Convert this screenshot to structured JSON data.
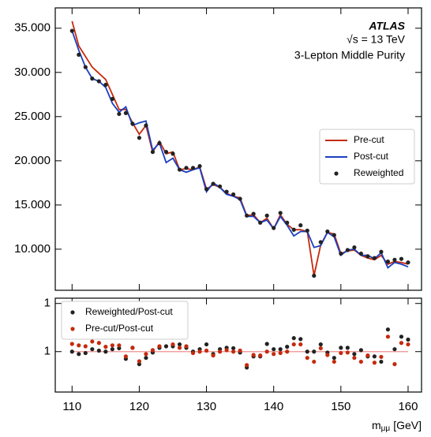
{
  "chart_data": [
    {
      "type": "line",
      "annotations": [
        "ATLAS",
        "√s = 13 TeV",
        "3-Lepton Middle Purity"
      ],
      "legend": "center right",
      "xlim": [
        107.5,
        162
      ],
      "ylim": [
        5350,
        37300
      ],
      "yticks": [
        {
          "value": 10000,
          "label": "10.000"
        },
        {
          "value": 15000,
          "label": "15.000"
        },
        {
          "value": 20000,
          "label": "20.000"
        },
        {
          "value": 25000,
          "label": "25.000"
        },
        {
          "value": 30000,
          "label": "30.000"
        },
        {
          "value": 35000,
          "label": "35.000"
        }
      ],
      "x": [
        110,
        111,
        112,
        113,
        114,
        115,
        116,
        117,
        118,
        119,
        120,
        121,
        122,
        123,
        124,
        125,
        126,
        127,
        128,
        129,
        130,
        131,
        132,
        133,
        134,
        135,
        136,
        137,
        138,
        139,
        140,
        141,
        142,
        143,
        144,
        145,
        146,
        147,
        148,
        149,
        150,
        151,
        152,
        153,
        154,
        155,
        156,
        157,
        158,
        159,
        160
      ],
      "series": [
        {
          "name": "Pre-cut",
          "color": "#c42a0c",
          "style": "line",
          "values": [
            35800,
            33000,
            31800,
            30600,
            29900,
            29200,
            27500,
            25800,
            25800,
            24300,
            23000,
            24000,
            21000,
            22200,
            20800,
            21000,
            19000,
            19100,
            19000,
            19300,
            16800,
            17300,
            17000,
            16300,
            16000,
            15800,
            13800,
            13900,
            13000,
            13500,
            12300,
            13900,
            12800,
            12200,
            12200,
            12000,
            7000,
            10500,
            11900,
            11700,
            9500,
            9800,
            9900,
            9300,
            9000,
            8800,
            9300,
            8300,
            8600,
            8500,
            8300
          ]
        },
        {
          "name": "Post-cut",
          "color": "#1a3fc0",
          "style": "line",
          "values": [
            34700,
            32500,
            30600,
            29300,
            29000,
            28300,
            26500,
            25500,
            26100,
            24000,
            24300,
            24500,
            21200,
            22000,
            19800,
            20300,
            19000,
            18700,
            19000,
            19200,
            16500,
            17500,
            17000,
            16200,
            16000,
            15600,
            13700,
            13700,
            13000,
            13300,
            12300,
            13700,
            12700,
            11500,
            12000,
            12000,
            10200,
            10400,
            11900,
            11400,
            9300,
            9900,
            10000,
            9300,
            9300,
            8900,
            9600,
            7900,
            8500,
            8300,
            8000
          ]
        },
        {
          "name": "Reweighted",
          "color": "#222222",
          "style": "points",
          "values": [
            34700,
            32000,
            30600,
            29300,
            29000,
            28600,
            27000,
            25300,
            25400,
            24200,
            22600,
            24000,
            21000,
            22000,
            21000,
            20800,
            19000,
            19200,
            19200,
            19400,
            16800,
            17400,
            17100,
            16500,
            16200,
            15700,
            13800,
            14000,
            13000,
            13800,
            12400,
            14100,
            13000,
            12200,
            12700,
            12100,
            7000,
            10800,
            12000,
            11600,
            9500,
            9900,
            10200,
            9500,
            9200,
            9000,
            9700,
            8600,
            8800,
            8900,
            8500
          ]
        }
      ]
    },
    {
      "type": "scatter",
      "legend": "upper left",
      "xlabel": {
        "main": "m",
        "sub": "μμ",
        "unit": "[GeV]"
      },
      "xlim": [
        107.5,
        162
      ],
      "ylim": [
        0.916,
        1.111
      ],
      "xticks": [
        110,
        120,
        130,
        140,
        150,
        160
      ],
      "yticks": [
        1,
        {
          "value": 1.1,
          "label": "1"
        }
      ],
      "refline": 1,
      "refline_color": "#f0a0a0",
      "x": [
        110,
        111,
        112,
        113,
        114,
        115,
        116,
        117,
        118,
        119,
        120,
        121,
        122,
        123,
        124,
        125,
        126,
        127,
        128,
        129,
        130,
        131,
        132,
        133,
        134,
        135,
        136,
        137,
        138,
        139,
        140,
        141,
        142,
        143,
        144,
        145,
        146,
        147,
        148,
        149,
        150,
        151,
        152,
        153,
        154,
        155,
        156,
        157,
        158,
        159,
        160
      ],
      "series": [
        {
          "name": "Reweighted/Post-cut",
          "color": "#222222",
          "style": "points",
          "values": [
            1.0,
            0.995,
            0.997,
            1.005,
            1.002,
            1.0,
            1.005,
            1.007,
            0.985,
            1.008,
            0.974,
            0.987,
            0.998,
            1.008,
            1.011,
            1.011,
            1.015,
            1.008,
            1.0,
            1.005,
            1.015,
            0.995,
            1.005,
            1.008,
            1.007,
            0.998,
            0.967,
            0.99,
            0.99,
            1.016,
            1.005,
            1.005,
            1.01,
            1.028,
            1.026,
            1.0,
            1.0,
            1.015,
            0.998,
            0.987,
            1.008,
            1.008,
            0.995,
            1.003,
            0.99,
            0.99,
            0.979,
            1.046,
            1.005,
            1.031,
            1.025
          ]
        },
        {
          "name": "Pre-cut/Post-cut",
          "color": "#c42a0c",
          "style": "points",
          "values": [
            1.016,
            1.013,
            1.011,
            1.021,
            1.018,
            1.01,
            1.013,
            1.013,
            0.99,
            1.008,
            0.98,
            0.995,
            1.003,
            1.011,
            1.03,
            1.015,
            1.008,
            1.011,
            0.997,
            1.0,
            1.002,
            0.992,
            1.0,
            1.003,
            1.0,
            1.002,
            0.972,
            0.993,
            0.992,
            1.0,
            0.995,
            0.997,
            1.0,
            1.015,
            1.015,
            0.987,
            0.979,
            1.007,
            0.993,
            0.979,
            0.997,
            0.998,
            0.987,
            0.979,
            0.992,
            0.977,
            0.989,
            1.031,
            0.974,
            1.018,
            1.015
          ]
        }
      ]
    }
  ]
}
